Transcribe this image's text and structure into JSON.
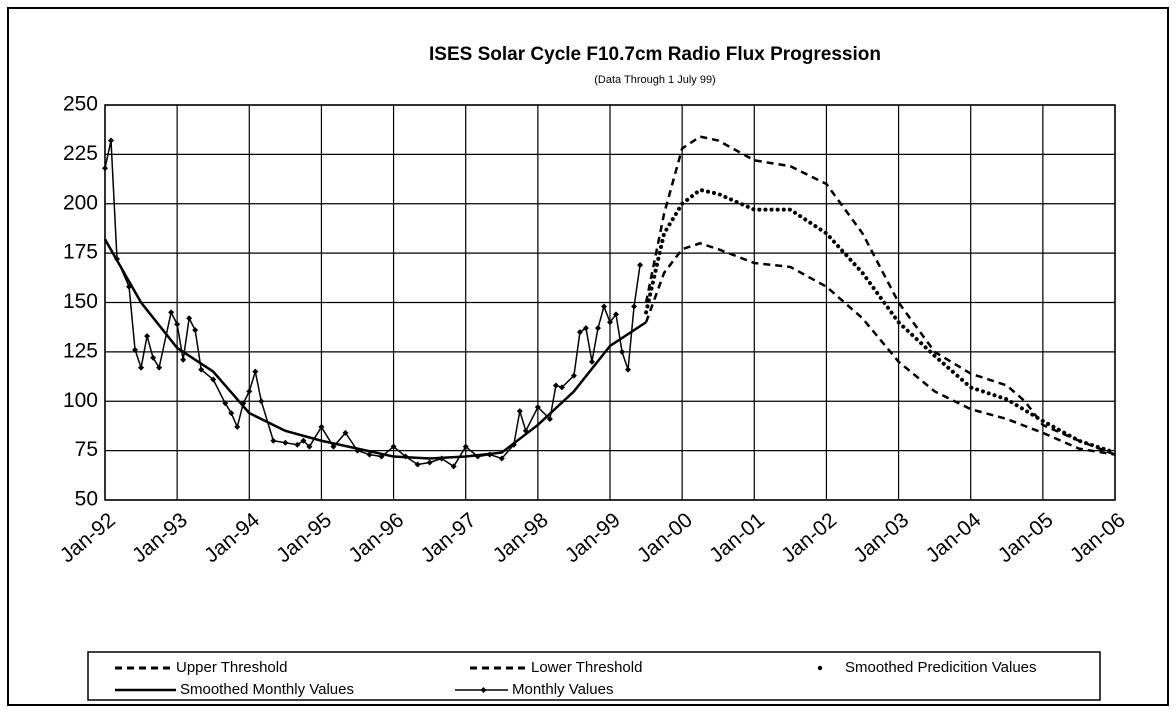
{
  "chart_data": {
    "type": "line",
    "title": "ISES Solar Cycle F10.7cm Radio Flux Progression",
    "subtitle": "(Data Through 1 July 99)",
    "ylim": [
      50,
      250
    ],
    "yticks": [
      50,
      75,
      100,
      125,
      150,
      175,
      200,
      225,
      250
    ],
    "xlim": [
      "1992-01",
      "2006-01"
    ],
    "xticks": [
      {
        "value": "1992-01",
        "label": "Jan-92"
      },
      {
        "value": "1993-01",
        "label": "Jan-93"
      },
      {
        "value": "1994-01",
        "label": "Jan-94"
      },
      {
        "value": "1995-01",
        "label": "Jan-95"
      },
      {
        "value": "1996-01",
        "label": "Jan-96"
      },
      {
        "value": "1997-01",
        "label": "Jan-97"
      },
      {
        "value": "1998-01",
        "label": "Jan-98"
      },
      {
        "value": "1999-01",
        "label": "Jan-99"
      },
      {
        "value": "2000-01",
        "label": "Jan-00"
      },
      {
        "value": "2001-01",
        "label": "Jan-01"
      },
      {
        "value": "2002-01",
        "label": "Jan-02"
      },
      {
        "value": "2003-01",
        "label": "Jan-03"
      },
      {
        "value": "2004-01",
        "label": "Jan-04"
      },
      {
        "value": "2005-01",
        "label": "Jan-05"
      },
      {
        "value": "2006-01",
        "label": "Jan-06"
      }
    ],
    "grid": true,
    "legend": "bottom",
    "series": [
      {
        "name": "Upper Threshold",
        "color": "#000",
        "line_style": "dashed",
        "x": [
          "1999-07",
          "1999-10",
          "2000-01",
          "2000-04",
          "2000-07",
          "2001-01",
          "2001-07",
          "2002-01",
          "2002-07",
          "2003-01",
          "2003-07",
          "2004-01",
          "2004-07",
          "2004-10",
          "2005-01",
          "2005-07",
          "2006-01"
        ],
        "values": [
          150,
          195,
          228,
          234,
          232,
          222,
          219,
          210,
          185,
          150,
          125,
          114,
          108,
          100,
          88,
          80,
          73
        ]
      },
      {
        "name": "Lower Threshold",
        "color": "#000",
        "line_style": "dashed",
        "x": [
          "1999-07",
          "1999-10",
          "2000-01",
          "2000-04",
          "2000-07",
          "2001-01",
          "2001-07",
          "2002-01",
          "2002-07",
          "2003-01",
          "2003-07",
          "2004-01",
          "2004-07",
          "2005-01",
          "2005-07",
          "2006-01"
        ],
        "values": [
          140,
          165,
          177,
          180,
          177,
          170,
          168,
          158,
          142,
          120,
          105,
          96,
          91,
          84,
          76,
          73
        ]
      },
      {
        "name": "Smoothed Predicition Values",
        "color": "#000",
        "line_style": "dotted",
        "x": [
          "1999-07",
          "1999-10",
          "2000-01",
          "2000-04",
          "2000-07",
          "2001-01",
          "2001-07",
          "2002-01",
          "2002-07",
          "2003-01",
          "2003-07",
          "2004-01",
          "2004-07",
          "2005-01",
          "2005-07",
          "2006-01"
        ],
        "values": [
          145,
          185,
          200,
          207,
          205,
          197,
          197,
          185,
          165,
          140,
          123,
          107,
          101,
          90,
          80,
          74
        ]
      },
      {
        "name": "Smoothed Monthly Values",
        "color": "#000",
        "line_style": "solid",
        "x": [
          "1992-01",
          "1992-07",
          "1993-01",
          "1993-07",
          "1994-01",
          "1994-07",
          "1995-01",
          "1995-07",
          "1996-01",
          "1996-07",
          "1997-01",
          "1997-07",
          "1998-01",
          "1998-07",
          "1999-01",
          "1999-07"
        ],
        "values": [
          182,
          150,
          127,
          115,
          94,
          85,
          80,
          76,
          72,
          71,
          72,
          74,
          88,
          105,
          128,
          140
        ]
      },
      {
        "name": "Monthly Values",
        "color": "#000",
        "line_style": "solid",
        "marker": "diamond",
        "x": [
          "1992-01",
          "1992-02",
          "1992-03",
          "1992-05",
          "1992-06",
          "1992-07",
          "1992-08",
          "1992-09",
          "1992-10",
          "1992-12",
          "1993-01",
          "1993-02",
          "1993-03",
          "1993-04",
          "1993-05",
          "1993-07",
          "1993-09",
          "1993-10",
          "1993-11",
          "1993-12",
          "1994-01",
          "1994-02",
          "1994-03",
          "1994-05",
          "1994-07",
          "1994-09",
          "1994-10",
          "1994-11",
          "1995-01",
          "1995-03",
          "1995-05",
          "1995-07",
          "1995-09",
          "1995-11",
          "1996-01",
          "1996-03",
          "1996-05",
          "1996-07",
          "1996-09",
          "1996-11",
          "1997-01",
          "1997-03",
          "1997-05",
          "1997-07",
          "1997-09",
          "1997-10",
          "1997-11",
          "1998-01",
          "1998-03",
          "1998-04",
          "1998-05",
          "1998-07",
          "1998-08",
          "1998-09",
          "1998-10",
          "1998-11",
          "1998-12",
          "1999-01",
          "1999-02",
          "1999-03",
          "1999-04",
          "1999-05",
          "1999-06"
        ],
        "values": [
          218,
          232,
          172,
          158,
          126,
          117,
          133,
          122,
          117,
          145,
          139,
          121,
          142,
          136,
          116,
          111,
          99,
          94,
          87,
          99,
          105,
          115,
          100,
          80,
          79,
          78,
          80,
          77,
          87,
          77,
          84,
          75,
          73,
          72,
          77,
          72,
          68,
          69,
          71,
          67,
          77,
          72,
          73,
          71,
          78,
          95,
          85,
          97,
          91,
          108,
          107,
          113,
          135,
          137,
          120,
          137,
          148,
          140,
          144,
          125,
          116,
          148,
          169
        ]
      }
    ]
  }
}
